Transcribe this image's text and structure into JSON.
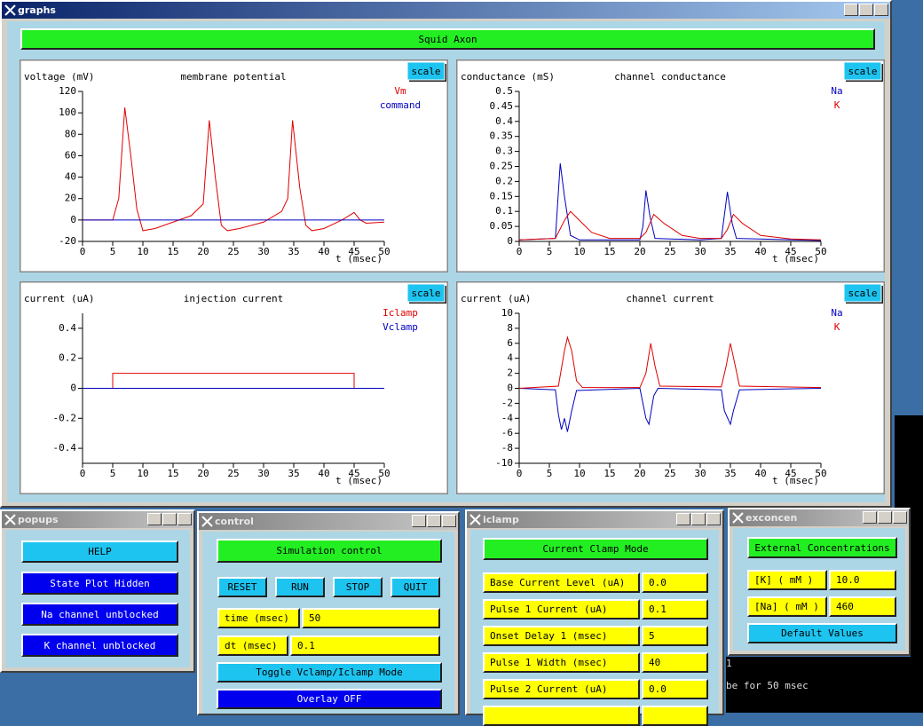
{
  "graphs_window": {
    "title": "graphs",
    "banner": "Squid Axon",
    "plots": [
      {
        "type": "line",
        "title": "membrane potential",
        "ylabel": "voltage (mV)",
        "xlabel": "t (msec)",
        "button": "scale",
        "xlim": [
          0,
          50
        ],
        "ylim": [
          -20,
          120
        ],
        "xticks": [
          0,
          5,
          10,
          15,
          20,
          25,
          30,
          35,
          40,
          45,
          50
        ],
        "yticks": [
          -20,
          0,
          20,
          40,
          60,
          80,
          100,
          120
        ],
        "series": [
          {
            "name": "Vm",
            "color": "#e00000",
            "x": [
              0,
              5,
              6,
              7,
              8,
              9,
              10,
              12,
              15,
              18,
              20,
              21,
              22,
              23,
              24,
              26,
              30,
              33,
              34,
              34.8,
              36,
              37,
              38,
              40,
              43,
              45,
              46,
              47,
              50
            ],
            "values": [
              0,
              0,
              20,
              105,
              60,
              10,
              -10,
              -8,
              -2,
              4,
              15,
              93,
              40,
              -5,
              -10,
              -8,
              -2,
              8,
              20,
              93,
              30,
              -5,
              -10,
              -8,
              0,
              7,
              0,
              -3,
              -2
            ]
          },
          {
            "name": "command",
            "color": "#0000c0",
            "x": [
              0,
              50
            ],
            "values": [
              0,
              0
            ]
          }
        ]
      },
      {
        "type": "line",
        "title": "channel conductance",
        "ylabel": "conductance (mS)",
        "xlabel": "t (msec)",
        "button": "scale",
        "xlim": [
          0,
          50
        ],
        "ylim": [
          0,
          0.5
        ],
        "xticks": [
          0,
          5,
          10,
          15,
          20,
          25,
          30,
          35,
          40,
          45,
          50
        ],
        "yticks": [
          0,
          0.05,
          0.1,
          0.15,
          0.2,
          0.25,
          0.3,
          0.35,
          0.4,
          0.45,
          0.5
        ],
        "series": [
          {
            "name": "Na",
            "color": "#0000c0",
            "x": [
              0,
              6,
              6.8,
              7.5,
              8.5,
              10,
              20,
              20.5,
              21,
              21.7,
              22.5,
              30,
              33.5,
              34.5,
              35.3,
              36,
              50
            ],
            "values": [
              0.005,
              0.01,
              0.26,
              0.15,
              0.02,
              0.005,
              0.005,
              0.05,
              0.17,
              0.08,
              0.01,
              0.005,
              0.01,
              0.165,
              0.06,
              0.01,
              0.003
            ]
          },
          {
            "name": "K",
            "color": "#e00000",
            "x": [
              0,
              6,
              7.5,
              8.5,
              10,
              12,
              15,
              20,
              21,
              22.3,
              24,
              27,
              30,
              33.5,
              34.5,
              35.5,
              37,
              40,
              45,
              50
            ],
            "values": [
              0.005,
              0.01,
              0.07,
              0.1,
              0.07,
              0.03,
              0.01,
              0.01,
              0.03,
              0.09,
              0.06,
              0.02,
              0.01,
              0.01,
              0.04,
              0.09,
              0.06,
              0.02,
              0.008,
              0.005
            ]
          }
        ]
      },
      {
        "type": "line",
        "title": "injection current",
        "ylabel": "current (uA)",
        "xlabel": "t (msec)",
        "button": "scale",
        "xlim": [
          0,
          50
        ],
        "ylim": [
          -0.5,
          0.5
        ],
        "xticks": [
          0,
          5,
          10,
          15,
          20,
          25,
          30,
          35,
          40,
          45,
          50
        ],
        "yticks": [
          -0.4,
          -0.2,
          0,
          0.2,
          0.4
        ],
        "series": [
          {
            "name": "Iclamp",
            "color": "#e00000",
            "x": [
              0,
              5,
              5,
              45,
              45,
              50
            ],
            "values": [
              0,
              0,
              0.1,
              0.1,
              0,
              0
            ]
          },
          {
            "name": "Vclamp",
            "color": "#0000c0",
            "x": [
              0,
              50
            ],
            "values": [
              0,
              0
            ]
          }
        ]
      },
      {
        "type": "line",
        "title": "channel current",
        "ylabel": "current (uA)",
        "xlabel": "t (msec)",
        "button": "scale",
        "xlim": [
          0,
          50
        ],
        "ylim": [
          -10,
          10
        ],
        "xticks": [
          0,
          5,
          10,
          15,
          20,
          25,
          30,
          35,
          40,
          45,
          50
        ],
        "yticks": [
          -10,
          -8,
          -6,
          -4,
          -2,
          0,
          2,
          4,
          6,
          8,
          10
        ],
        "series": [
          {
            "name": "Na",
            "color": "#0000c0",
            "x": [
              0,
              6,
              6.5,
              7,
              7.5,
              8,
              8.7,
              9.5,
              20,
              20.5,
              21,
              21.5,
              22.3,
              23,
              33.5,
              34,
              35,
              35.5,
              36.5,
              50
            ],
            "values": [
              0,
              -0.2,
              -3.5,
              -5.5,
              -4,
              -5.8,
              -3,
              -0.3,
              0,
              -2,
              -4,
              -4.8,
              -1,
              0,
              -0.2,
              -3,
              -4.8,
              -3,
              -0.2,
              0
            ]
          },
          {
            "name": "K",
            "color": "#e00000",
            "x": [
              0,
              6.5,
              7.5,
              8,
              8.7,
              9.5,
              10.5,
              20,
              21,
              21.8,
              22.5,
              23.3,
              33.5,
              34.3,
              35,
              35.8,
              36.5,
              50
            ],
            "values": [
              0,
              0.3,
              5,
              6.8,
              5,
              1,
              0.1,
              0.1,
              2,
              6,
              3,
              0.3,
              0.2,
              3,
              6,
              3,
              0.3,
              0.1
            ]
          }
        ]
      }
    ]
  },
  "popups": {
    "title": "popups",
    "buttons": [
      "HELP",
      "State Plot Hidden",
      "Na channel unblocked",
      "K channel unblocked"
    ]
  },
  "control": {
    "title": "control",
    "header": "Simulation control",
    "buttons": [
      "RESET",
      "RUN",
      "STOP",
      "QUIT"
    ],
    "fields": [
      {
        "label": "time (msec)",
        "value": "50"
      },
      {
        "label": "dt (msec)",
        "value": "0.1"
      }
    ],
    "toggle": "Toggle Vclamp/Iclamp Mode",
    "overlay": "Overlay OFF"
  },
  "iclamp": {
    "title": "iclamp",
    "header": "Current Clamp Mode",
    "fields": [
      {
        "label": "Base Current Level (uA)",
        "value": "0.0"
      },
      {
        "label": "Pulse 1 Current (uA)",
        "value": "0.1"
      },
      {
        "label": "Onset Delay 1 (msec)",
        "value": "5"
      },
      {
        "label": "Pulse 1 Width (msec)",
        "value": "40"
      },
      {
        "label": "Pulse 2 Current (uA)",
        "value": "0.0"
      }
    ]
  },
  "exconcen": {
    "title": "exconcen",
    "header": "External Concentrations",
    "fields": [
      {
        "label": "[K] ( mM )",
        "value": "10.0"
      },
      {
        "label": "[Na] ( mM )",
        "value": "460"
      }
    ],
    "button": "Default Values"
  },
  "terminal": {
    "lines": [
      "1",
      "be for 50 msec"
    ]
  }
}
